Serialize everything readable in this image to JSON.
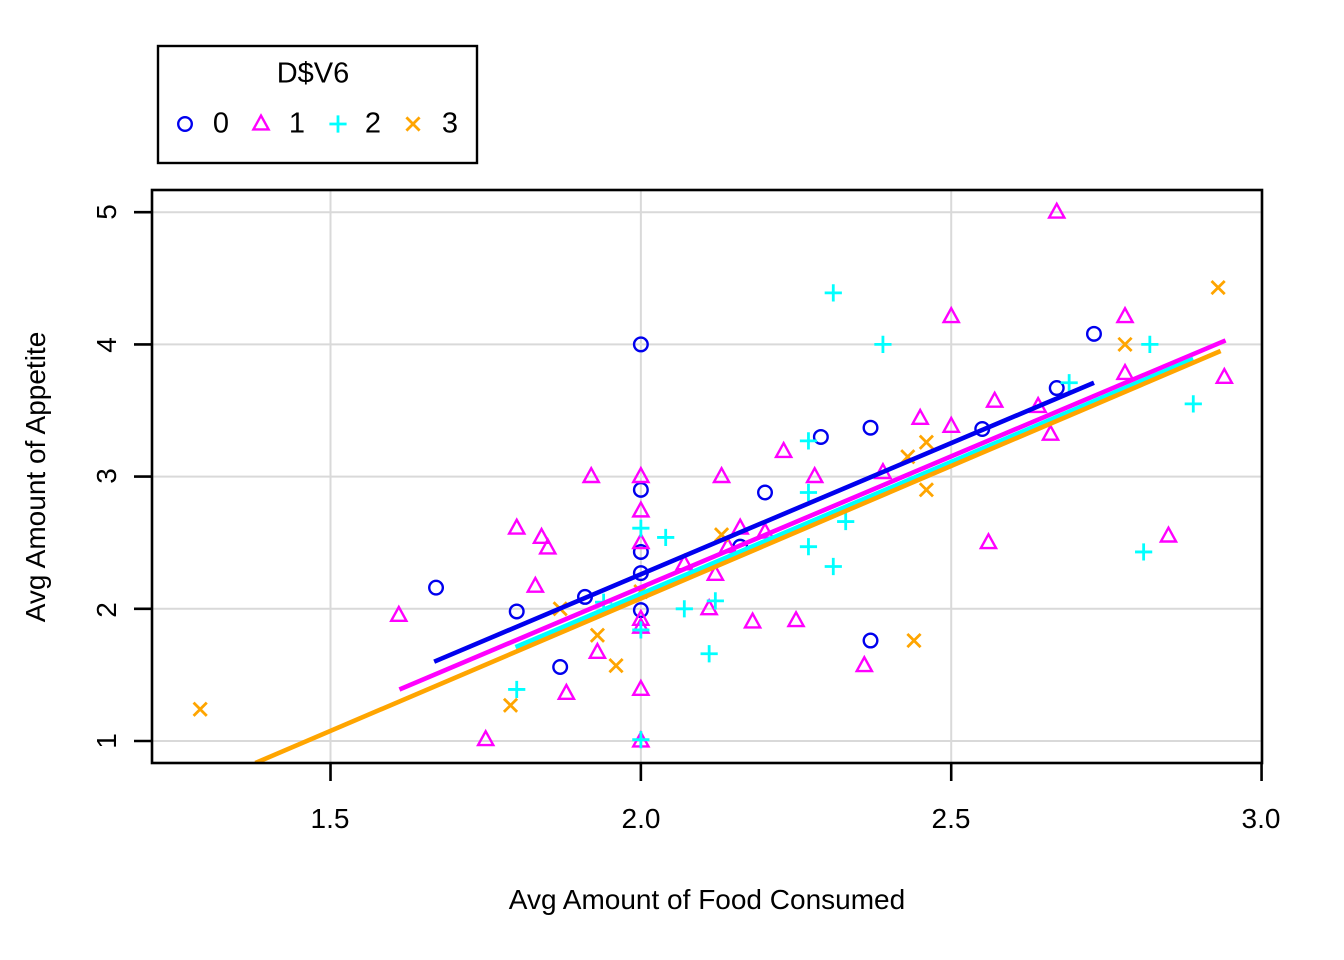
{
  "figure": {
    "background": "#FFFFFF",
    "frame_color": "#000000",
    "grid_color": "#D9D9D9",
    "legend": {
      "title": "D$V6",
      "items": [
        {
          "label": "0",
          "marker": "circle",
          "color": "#0000EE"
        },
        {
          "label": "1",
          "marker": "triangle",
          "color": "#FF00FF"
        },
        {
          "label": "2",
          "marker": "plus",
          "color": "#00FFFF"
        },
        {
          "label": "3",
          "marker": "cross",
          "color": "#FFA500"
        }
      ]
    }
  },
  "chart_data": {
    "type": "scatter",
    "title": "",
    "xlabel": "Avg Amount of Food Consumed",
    "ylabel": "Avg Amount of Appetite",
    "x_ticks": [
      1.5,
      2.0,
      2.5,
      3.0
    ],
    "x_tick_labels": [
      "1.5",
      "2.0",
      "2.5",
      "3.0"
    ],
    "y_ticks": [
      1,
      2,
      3,
      4,
      5
    ],
    "y_tick_labels": [
      "1",
      "2",
      "3",
      "4",
      "5"
    ],
    "xlim": [
      1.2124,
      3.0007
    ],
    "ylim": [
      0.8336,
      5.168
    ],
    "grid": true,
    "legend_position": "top-left-outside",
    "series": [
      {
        "name": "0",
        "marker": "circle",
        "color": "#0000EE",
        "points": [
          [
            1.67,
            2.16
          ],
          [
            1.8,
            1.98
          ],
          [
            1.87,
            1.56
          ],
          [
            1.91,
            2.09
          ],
          [
            2.0,
            4.0
          ],
          [
            2.0,
            2.9
          ],
          [
            2.0,
            2.43
          ],
          [
            2.0,
            2.27
          ],
          [
            2.0,
            1.99
          ],
          [
            2.16,
            2.47
          ],
          [
            2.2,
            2.88
          ],
          [
            2.29,
            3.3
          ],
          [
            2.37,
            3.37
          ],
          [
            2.37,
            1.76
          ],
          [
            2.55,
            3.36
          ],
          [
            2.67,
            3.67
          ],
          [
            2.73,
            4.08
          ]
        ],
        "fit_line": {
          "x1": 1.667,
          "y1": 1.6,
          "x2": 2.73,
          "y2": 3.71
        }
      },
      {
        "name": "1",
        "marker": "triangle",
        "color": "#FF00FF",
        "points": [
          [
            1.61,
            1.95
          ],
          [
            1.75,
            1.01
          ],
          [
            1.8,
            2.61
          ],
          [
            1.84,
            2.54
          ],
          [
            1.85,
            2.46
          ],
          [
            1.83,
            2.17
          ],
          [
            1.88,
            1.36
          ],
          [
            1.92,
            3.0
          ],
          [
            1.93,
            1.67
          ],
          [
            2.0,
            3.0
          ],
          [
            2.0,
            2.74
          ],
          [
            2.0,
            2.5
          ],
          [
            2.0,
            1.92
          ],
          [
            2.0,
            1.86
          ],
          [
            2.0,
            1.39
          ],
          [
            2.0,
            1.0
          ],
          [
            2.07,
            2.34
          ],
          [
            2.11,
            2.0
          ],
          [
            2.12,
            2.26
          ],
          [
            2.13,
            3.0
          ],
          [
            2.14,
            2.47
          ],
          [
            2.16,
            2.61
          ],
          [
            2.2,
            2.58
          ],
          [
            2.18,
            1.9
          ],
          [
            2.23,
            3.19
          ],
          [
            2.25,
            1.91
          ],
          [
            2.28,
            3.0
          ],
          [
            2.36,
            1.57
          ],
          [
            2.39,
            3.03
          ],
          [
            2.45,
            3.44
          ],
          [
            2.5,
            3.38
          ],
          [
            2.5,
            4.21
          ],
          [
            2.56,
            2.5
          ],
          [
            2.57,
            3.57
          ],
          [
            2.64,
            3.53
          ],
          [
            2.66,
            3.32
          ],
          [
            2.67,
            5.0
          ],
          [
            2.78,
            4.21
          ],
          [
            2.78,
            3.78
          ],
          [
            2.85,
            2.55
          ],
          [
            2.94,
            3.75
          ]
        ],
        "fit_line": {
          "x1": 1.611,
          "y1": 1.39,
          "x2": 2.942,
          "y2": 4.03
        }
      },
      {
        "name": "2",
        "marker": "plus",
        "color": "#00FFFF",
        "points": [
          [
            1.8,
            1.39
          ],
          [
            1.94,
            2.05
          ],
          [
            2.0,
            2.61
          ],
          [
            2.0,
            1.84
          ],
          [
            2.0,
            1.01
          ],
          [
            2.04,
            2.54
          ],
          [
            2.07,
            2.0
          ],
          [
            2.11,
            1.66
          ],
          [
            2.12,
            2.06
          ],
          [
            2.27,
            2.88
          ],
          [
            2.27,
            2.47
          ],
          [
            2.27,
            3.27
          ],
          [
            2.31,
            2.32
          ],
          [
            2.31,
            4.39
          ],
          [
            2.33,
            2.66
          ],
          [
            2.39,
            4.0
          ],
          [
            2.69,
            3.71
          ],
          [
            2.81,
            2.43
          ],
          [
            2.82,
            4.0
          ],
          [
            2.89,
            3.55
          ]
        ],
        "fit_line": {
          "x1": 1.798,
          "y1": 1.71,
          "x2": 2.89,
          "y2": 3.89
        }
      },
      {
        "name": "3",
        "marker": "cross",
        "color": "#FFA500",
        "points": [
          [
            1.29,
            1.24
          ],
          [
            1.79,
            1.27
          ],
          [
            1.87,
            2.0
          ],
          [
            1.93,
            1.8
          ],
          [
            1.96,
            1.57
          ],
          [
            2.0,
            2.13
          ],
          [
            2.13,
            2.56
          ],
          [
            2.43,
            3.15
          ],
          [
            2.46,
            3.26
          ],
          [
            2.44,
            1.76
          ],
          [
            2.46,
            2.9
          ],
          [
            2.78,
            4.0
          ],
          [
            2.93,
            4.43
          ]
        ],
        "fit_line": {
          "x1": 1.379,
          "y1": 0.834,
          "x2": 2.934,
          "y2": 3.95
        }
      }
    ]
  }
}
